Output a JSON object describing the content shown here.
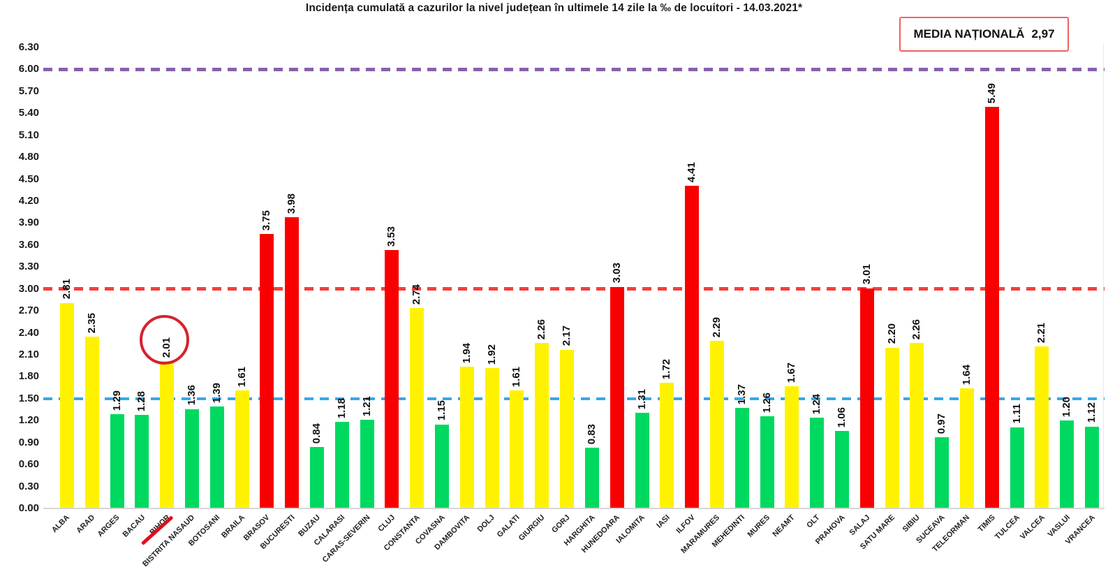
{
  "title": "Incidența cumulată a cazurilor la nivel județean în ultimele 14 zile la ‰ de locuitori - 14.03.2021*",
  "national_average_box": {
    "label": "MEDIA NAȚIONALĂ",
    "value": "2,97"
  },
  "colors": {
    "green": "#00d95f",
    "yellow": "#fff200",
    "red": "#f80000",
    "circle_annotation": "#d6212e",
    "label_underline": "#e30b1c",
    "avg_box_border": "#f26161"
  },
  "chart_data": {
    "type": "bar",
    "title": "Incidența cumulată a cazurilor la nivel județean în ultimele 14 zile la ‰ de locuitori - 14.03.2021*",
    "xlabel": "",
    "ylabel": "",
    "ylim": [
      0,
      6.3
    ],
    "ytick_step": 0.3,
    "grid": false,
    "legend": "none",
    "categories": [
      "ALBA",
      "ARAD",
      "ARGES",
      "BACAU",
      "BIHOR",
      "BISTRITA NASAUD",
      "BOTOSANI",
      "BRAILA",
      "BRASOV",
      "BUCURESTI",
      "BUZAU",
      "CALARASI",
      "CARAS-SEVERIN",
      "CLUJ",
      "CONSTANTA",
      "COVASNA",
      "DAMBOVITA",
      "DOLJ",
      "GALATI",
      "GIURGIU",
      "GORJ",
      "HARGHITA",
      "HUNEDOARA",
      "IALOMITA",
      "IASI",
      "ILFOV",
      "MARAMURES",
      "MEHEDINTI",
      "MURES",
      "NEAMT",
      "OLT",
      "PRAHOVA",
      "SALAJ",
      "SATU MARE",
      "SIBIU",
      "SUCEAVA",
      "TELEORMAN",
      "TIMIS",
      "TULCEA",
      "VALCEA",
      "VASLUI",
      "VRANCEA"
    ],
    "values": [
      2.81,
      2.35,
      1.29,
      1.28,
      2.01,
      1.36,
      1.39,
      1.61,
      3.75,
      3.98,
      0.84,
      1.18,
      1.21,
      3.53,
      2.74,
      1.15,
      1.94,
      1.92,
      1.61,
      2.26,
      2.17,
      0.83,
      3.03,
      1.31,
      1.72,
      4.41,
      2.29,
      1.37,
      1.26,
      1.67,
      1.24,
      1.06,
      3.01,
      2.2,
      2.26,
      0.97,
      1.64,
      5.49,
      1.11,
      2.21,
      1.2,
      1.12
    ],
    "bar_bands": [
      "yellow",
      "yellow",
      "green",
      "green",
      "yellow",
      "green",
      "green",
      "yellow",
      "red",
      "red",
      "green",
      "green",
      "green",
      "red",
      "yellow",
      "green",
      "yellow",
      "yellow",
      "yellow",
      "yellow",
      "yellow",
      "green",
      "red",
      "green",
      "yellow",
      "red",
      "yellow",
      "green",
      "green",
      "yellow",
      "green",
      "green",
      "red",
      "yellow",
      "yellow",
      "green",
      "yellow",
      "red",
      "green",
      "yellow",
      "green",
      "green"
    ],
    "reference_lines": [
      {
        "name": "purple-threshold",
        "value": 6.0,
        "color": "#8661ac",
        "style": "dashed"
      },
      {
        "name": "red-threshold",
        "value": 3.0,
        "color": "#f83c3c",
        "style": "dashed"
      },
      {
        "name": "blue-threshold",
        "value": 1.5,
        "color": "#35a8e8",
        "style": "dashed"
      }
    ],
    "annotations": [
      {
        "type": "circle",
        "category": "BIHOR",
        "target": "value-label"
      },
      {
        "type": "underline",
        "category": "BIHOR",
        "target": "axis-label"
      }
    ]
  }
}
